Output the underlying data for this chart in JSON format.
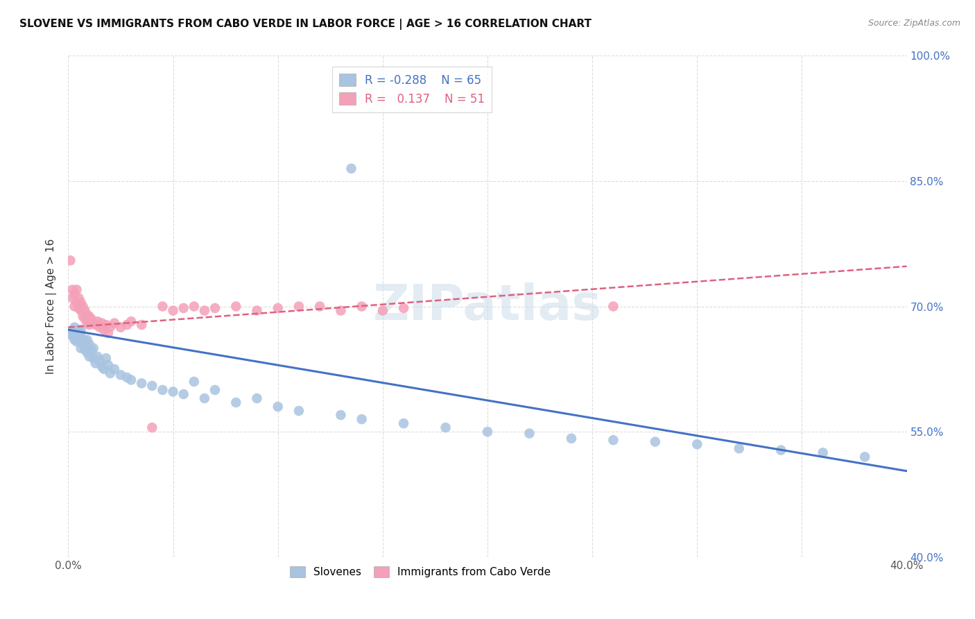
{
  "title": "SLOVENE VS IMMIGRANTS FROM CABO VERDE IN LABOR FORCE | AGE > 16 CORRELATION CHART",
  "source": "Source: ZipAtlas.com",
  "ylabel": "In Labor Force | Age > 16",
  "x_min": 0.0,
  "x_max": 0.4,
  "y_min": 0.4,
  "y_max": 1.0,
  "x_tick_positions": [
    0.0,
    0.05,
    0.1,
    0.15,
    0.2,
    0.25,
    0.3,
    0.35,
    0.4
  ],
  "x_tick_labels": [
    "0.0%",
    "",
    "",
    "",
    "",
    "",
    "",
    "",
    "40.0%"
  ],
  "y_tick_positions": [
    0.4,
    0.55,
    0.7,
    0.85,
    1.0
  ],
  "y_tick_labels": [
    "40.0%",
    "55.0%",
    "70.0%",
    "85.0%",
    "100.0%"
  ],
  "slovene_R": -0.288,
  "slovene_N": 65,
  "cabo_verde_R": 0.137,
  "cabo_verde_N": 51,
  "slovene_color": "#a8c4e0",
  "cabo_verde_color": "#f4a0b8",
  "slovene_line_color": "#4472c4",
  "cabo_verde_line_color": "#e06080",
  "watermark": "ZIPatlas",
  "legend_R_color_slovene": "#4472c4",
  "legend_R_color_cabo": "#e06080",
  "grid_color": "#dddddd",
  "right_axis_color": "#4472c4",
  "slovene_x": [
    0.001,
    0.002,
    0.002,
    0.003,
    0.003,
    0.003,
    0.004,
    0.004,
    0.004,
    0.005,
    0.005,
    0.005,
    0.006,
    0.006,
    0.006,
    0.007,
    0.007,
    0.008,
    0.008,
    0.009,
    0.009,
    0.01,
    0.01,
    0.011,
    0.012,
    0.012,
    0.013,
    0.014,
    0.015,
    0.016,
    0.017,
    0.018,
    0.019,
    0.02,
    0.022,
    0.025,
    0.028,
    0.03,
    0.035,
    0.04,
    0.045,
    0.05,
    0.055,
    0.06,
    0.065,
    0.07,
    0.08,
    0.09,
    0.1,
    0.11,
    0.13,
    0.14,
    0.16,
    0.18,
    0.2,
    0.22,
    0.24,
    0.26,
    0.28,
    0.3,
    0.32,
    0.34,
    0.36,
    0.38,
    0.135
  ],
  "slovene_y": [
    0.668,
    0.665,
    0.672,
    0.66,
    0.67,
    0.675,
    0.658,
    0.664,
    0.668,
    0.66,
    0.665,
    0.672,
    0.65,
    0.668,
    0.672,
    0.655,
    0.66,
    0.648,
    0.658,
    0.645,
    0.66,
    0.64,
    0.655,
    0.648,
    0.638,
    0.65,
    0.632,
    0.64,
    0.635,
    0.628,
    0.625,
    0.638,
    0.63,
    0.62,
    0.625,
    0.618,
    0.615,
    0.612,
    0.608,
    0.605,
    0.6,
    0.598,
    0.595,
    0.61,
    0.59,
    0.6,
    0.585,
    0.59,
    0.58,
    0.575,
    0.57,
    0.565,
    0.56,
    0.555,
    0.55,
    0.548,
    0.542,
    0.54,
    0.538,
    0.535,
    0.53,
    0.528,
    0.525,
    0.52,
    0.865
  ],
  "cabo_verde_x": [
    0.001,
    0.002,
    0.002,
    0.003,
    0.003,
    0.004,
    0.004,
    0.005,
    0.005,
    0.006,
    0.006,
    0.007,
    0.007,
    0.008,
    0.008,
    0.009,
    0.009,
    0.01,
    0.01,
    0.011,
    0.012,
    0.013,
    0.014,
    0.015,
    0.016,
    0.017,
    0.018,
    0.019,
    0.02,
    0.022,
    0.025,
    0.028,
    0.03,
    0.035,
    0.04,
    0.045,
    0.05,
    0.055,
    0.06,
    0.065,
    0.07,
    0.08,
    0.09,
    0.1,
    0.11,
    0.12,
    0.13,
    0.14,
    0.15,
    0.16,
    0.26
  ],
  "cabo_verde_y": [
    0.755,
    0.72,
    0.71,
    0.715,
    0.7,
    0.72,
    0.705,
    0.71,
    0.698,
    0.705,
    0.695,
    0.7,
    0.688,
    0.695,
    0.685,
    0.69,
    0.68,
    0.688,
    0.678,
    0.685,
    0.68,
    0.678,
    0.682,
    0.675,
    0.68,
    0.672,
    0.678,
    0.668,
    0.675,
    0.68,
    0.675,
    0.678,
    0.682,
    0.678,
    0.555,
    0.7,
    0.695,
    0.698,
    0.7,
    0.695,
    0.698,
    0.7,
    0.695,
    0.698,
    0.7,
    0.7,
    0.695,
    0.7,
    0.695,
    0.698,
    0.7
  ],
  "slovene_line_x0": 0.0,
  "slovene_line_x1": 0.4,
  "slovene_line_y0": 0.672,
  "slovene_line_y1": 0.503,
  "cabo_verde_line_x0": 0.0,
  "cabo_verde_line_x1": 0.4,
  "cabo_verde_line_y0": 0.675,
  "cabo_verde_line_y1": 0.748
}
